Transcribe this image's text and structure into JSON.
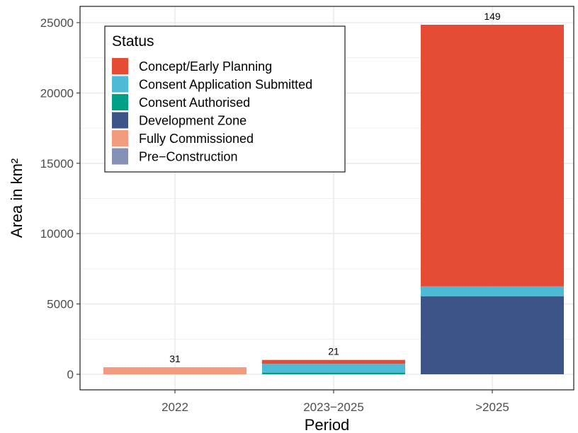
{
  "chart_data": {
    "type": "bar",
    "stacked": true,
    "categories": [
      "2022",
      "2023−2025",
      ">2025"
    ],
    "xlabel": "Period",
    "ylabel": "Area in km²",
    "ylim": [
      0,
      26000
    ],
    "yticks": [
      0,
      5000,
      10000,
      15000,
      20000,
      25000
    ],
    "grid": true,
    "legend": {
      "title": "Status",
      "placement": "top-left"
    },
    "series": [
      {
        "name": "Development Zone",
        "color": "#3c5488",
        "values": [
          0,
          0,
          5550
        ]
      },
      {
        "name": "Pre−Construction",
        "color": "#8491b4",
        "values": [
          0,
          0,
          0
        ]
      },
      {
        "name": "Consent Authorised",
        "color": "#00a087",
        "values": [
          0,
          120,
          0
        ]
      },
      {
        "name": "Consent Application Submitted",
        "color": "#4dbbd5",
        "values": [
          0,
          620,
          700
        ]
      },
      {
        "name": "Fully Commissioned",
        "color": "#f39b7f",
        "values": [
          500,
          0,
          0
        ]
      },
      {
        "name": "Concept/Early Planning",
        "color": "#e64b35",
        "values": [
          0,
          280,
          18600
        ]
      }
    ],
    "legend_order": [
      "Concept/Early Planning",
      "Consent Application Submitted",
      "Consent Authorised",
      "Development Zone",
      "Fully Commissioned",
      "Pre−Construction"
    ],
    "bar_labels": [
      "31",
      "21",
      "149"
    ]
  }
}
